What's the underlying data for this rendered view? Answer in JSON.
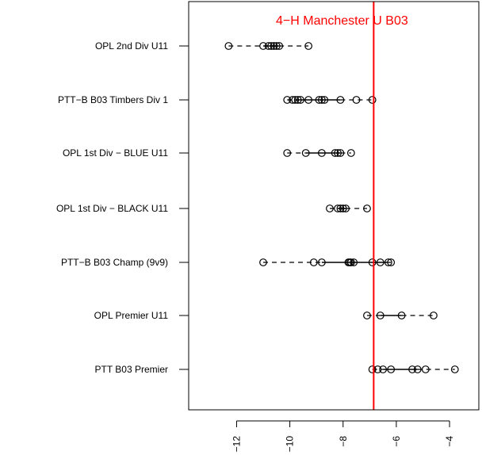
{
  "chart_data": {
    "type": "scatter",
    "title": "",
    "xlabel": "",
    "ylabel": "",
    "xlim": [
      -13.8,
      -2.9
    ],
    "x_ticks": [
      -12,
      -10,
      -8,
      -6,
      -4
    ],
    "x_tick_labels": [
      "−12",
      "−10",
      "−8",
      "−6",
      "−4"
    ],
    "categories": [
      "OPL 2nd Div U11",
      "PTT−B B03 Timbers Div 1",
      "OPL 1st Div − BLUE U11",
      "OPL 1st Div − BLACK U11",
      "PTT−B B03 Champ (9v9)",
      "OPL Premier U11",
      "PTT B03 Premier"
    ],
    "rows": [
      {
        "points": [
          -12.3,
          -11.0,
          -10.8,
          -10.7,
          -10.6,
          -10.5,
          -10.4,
          -9.3
        ],
        "box": [
          -11.0,
          -10.4
        ]
      },
      {
        "points": [
          -10.1,
          -9.9,
          -9.8,
          -9.7,
          -9.6,
          -9.3,
          -8.9,
          -8.8,
          -8.7,
          -8.1,
          -7.5,
          -6.9
        ],
        "box": [
          -9.8,
          -8.1
        ]
      },
      {
        "points": [
          -10.1,
          -9.4,
          -8.8,
          -8.3,
          -8.2,
          -8.1,
          -7.7
        ],
        "box": [
          -9.4,
          -8.1
        ]
      },
      {
        "points": [
          -8.5,
          -8.2,
          -8.1,
          -8.0,
          -7.9,
          -7.1
        ],
        "box": [
          -8.2,
          -7.9
        ]
      },
      {
        "points": [
          -11.0,
          -9.1,
          -8.8,
          -7.8,
          -7.75,
          -7.7,
          -7.6,
          -6.9,
          -6.6,
          -6.3,
          -6.2
        ],
        "box": [
          -8.8,
          -6.3
        ]
      },
      {
        "points": [
          -7.1,
          -6.6,
          -5.8,
          -4.6
        ],
        "box": [
          -6.6,
          -5.8
        ]
      },
      {
        "points": [
          -6.9,
          -6.7,
          -6.5,
          -6.2,
          -5.4,
          -5.2,
          -4.9,
          -3.8
        ],
        "box": [
          -6.5,
          -5.2
        ]
      }
    ],
    "reference_line": {
      "x": -6.85,
      "label": "4−H Manchester U B03",
      "color": "#ff0000"
    },
    "grid": false,
    "colors": {
      "points": "#000000",
      "reference": "#ff0000"
    }
  }
}
